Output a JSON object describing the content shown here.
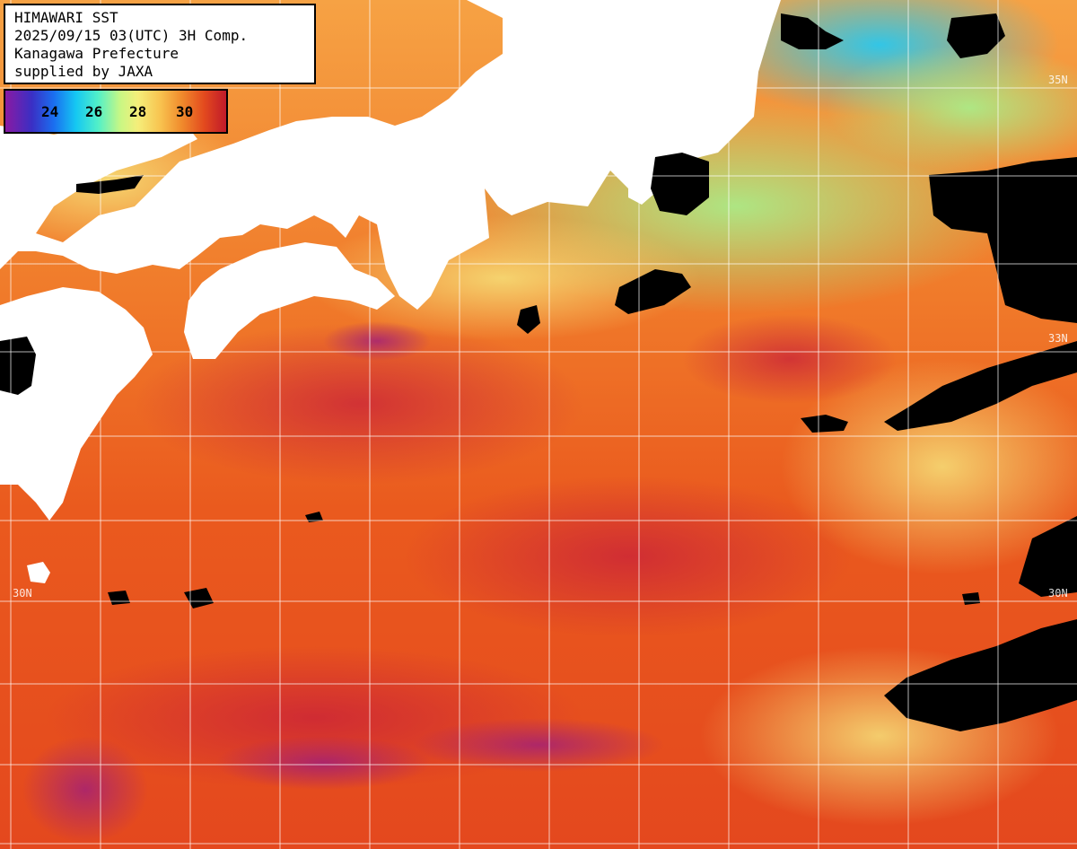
{
  "header": {
    "line1": "HIMAWARI SST",
    "line2": "2025/09/15 03(UTC) 3H Comp.",
    "line3": "Kanagawa Prefecture",
    "line4": "supplied by JAXA"
  },
  "legend": {
    "ticks": [
      "24",
      "26",
      "28",
      "30"
    ],
    "colors": [
      "#8a1aa3",
      "#3a2fc4",
      "#1a6ff0",
      "#15c8f2",
      "#52f0c8",
      "#c8f784",
      "#f5ee7a",
      "#f8c450",
      "#f08a2c",
      "#e34a1e",
      "#c01a2a"
    ]
  },
  "grid_labels": {
    "lat35_right": "35N",
    "lat30_left": "30N",
    "lat30_right": "30N",
    "lat33_right": "33N"
  },
  "palette": {
    "land": "#ffffff",
    "cloud_mask": "#000000",
    "grid": "#ffffff"
  }
}
